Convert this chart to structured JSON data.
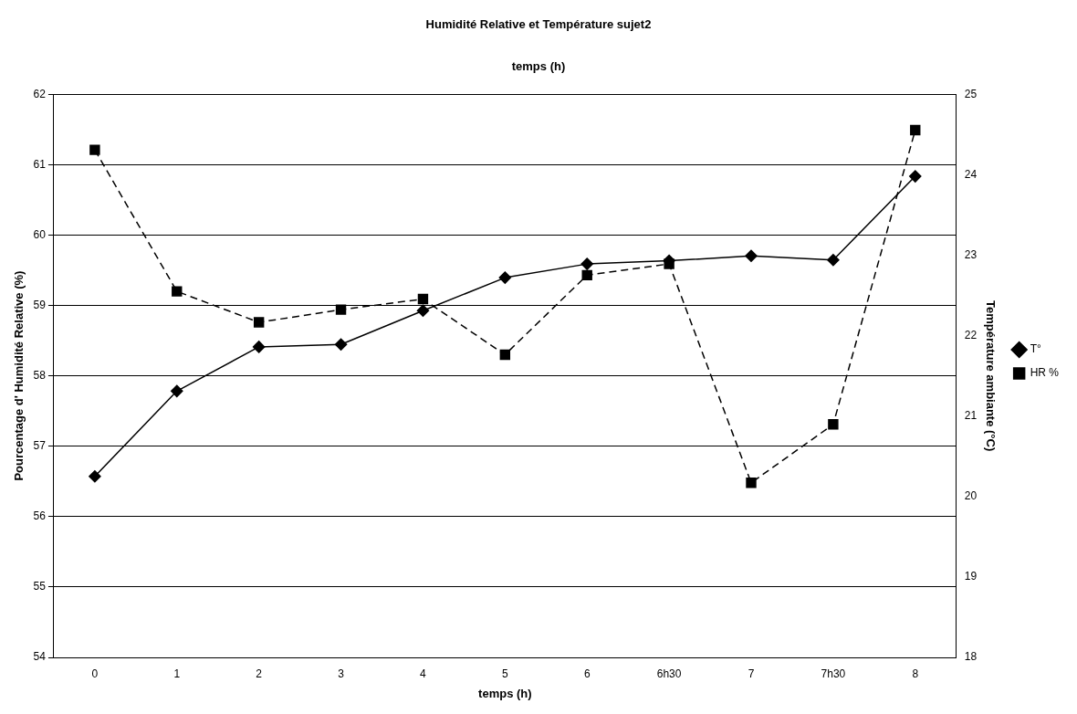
{
  "chart_data": {
    "type": "line",
    "title": "Humidité Relative et Température sujet2",
    "subtitle": "temps (h)",
    "xlabel": "temps (h)",
    "ylabel": "Pourcentage d' Humidité Relative (%)",
    "y2label": "Température ambiante (°C)",
    "categories": [
      "0",
      "1",
      "2",
      "3",
      "4",
      "5",
      "6",
      "6h30",
      "7",
      "7h30",
      "8"
    ],
    "series": [
      {
        "name": "HR %",
        "color": "#000000",
        "marker": "square",
        "line_style": "dashed",
        "values": [
          61.21,
          59.2,
          58.76,
          58.94,
          59.09,
          58.3,
          59.43,
          59.59,
          56.48,
          57.31,
          61.49
        ]
      },
      {
        "name": "T°",
        "color": "#000000",
        "marker": "diamond",
        "line_style": "solid",
        "axis": "y2",
        "values": [
          20.25,
          21.31,
          21.86,
          21.89,
          22.31,
          22.72,
          22.89,
          22.93,
          22.99,
          22.94,
          23.98
        ]
      }
    ],
    "ylim": [
      54,
      62
    ],
    "yticks": [
      54,
      55,
      56,
      57,
      58,
      59,
      60,
      61,
      62
    ],
    "y2lim": [
      18,
      25
    ],
    "y2ticks": [
      18,
      19,
      20,
      21,
      22,
      23,
      24,
      25
    ],
    "grid": "y",
    "legend": "right"
  }
}
